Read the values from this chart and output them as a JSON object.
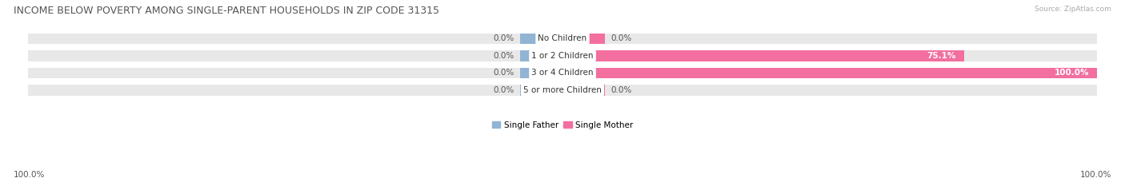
{
  "title": "INCOME BELOW POVERTY AMONG SINGLE-PARENT HOUSEHOLDS IN ZIP CODE 31315",
  "source": "Source: ZipAtlas.com",
  "categories": [
    "No Children",
    "1 or 2 Children",
    "3 or 4 Children",
    "5 or more Children"
  ],
  "single_father": [
    0.0,
    0.0,
    0.0,
    0.0
  ],
  "single_mother": [
    0.0,
    75.1,
    100.0,
    0.0
  ],
  "father_color": "#92b4d4",
  "mother_color": "#f26fa0",
  "bar_bg_color": "#e8e8e8",
  "title_color": "#555555",
  "source_color": "#aaaaaa",
  "legend_father": "Single Father",
  "legend_mother": "Single Mother",
  "xlim": 100.0,
  "stub_size": 8.0,
  "bar_height": 0.62,
  "figsize": [
    14.06,
    2.33
  ],
  "dpi": 100,
  "title_fontsize": 9.0,
  "label_fontsize": 7.5,
  "value_fontsize": 7.5,
  "tick_fontsize": 7.5,
  "bottom_left_label": "100.0%",
  "bottom_right_label": "100.0%"
}
